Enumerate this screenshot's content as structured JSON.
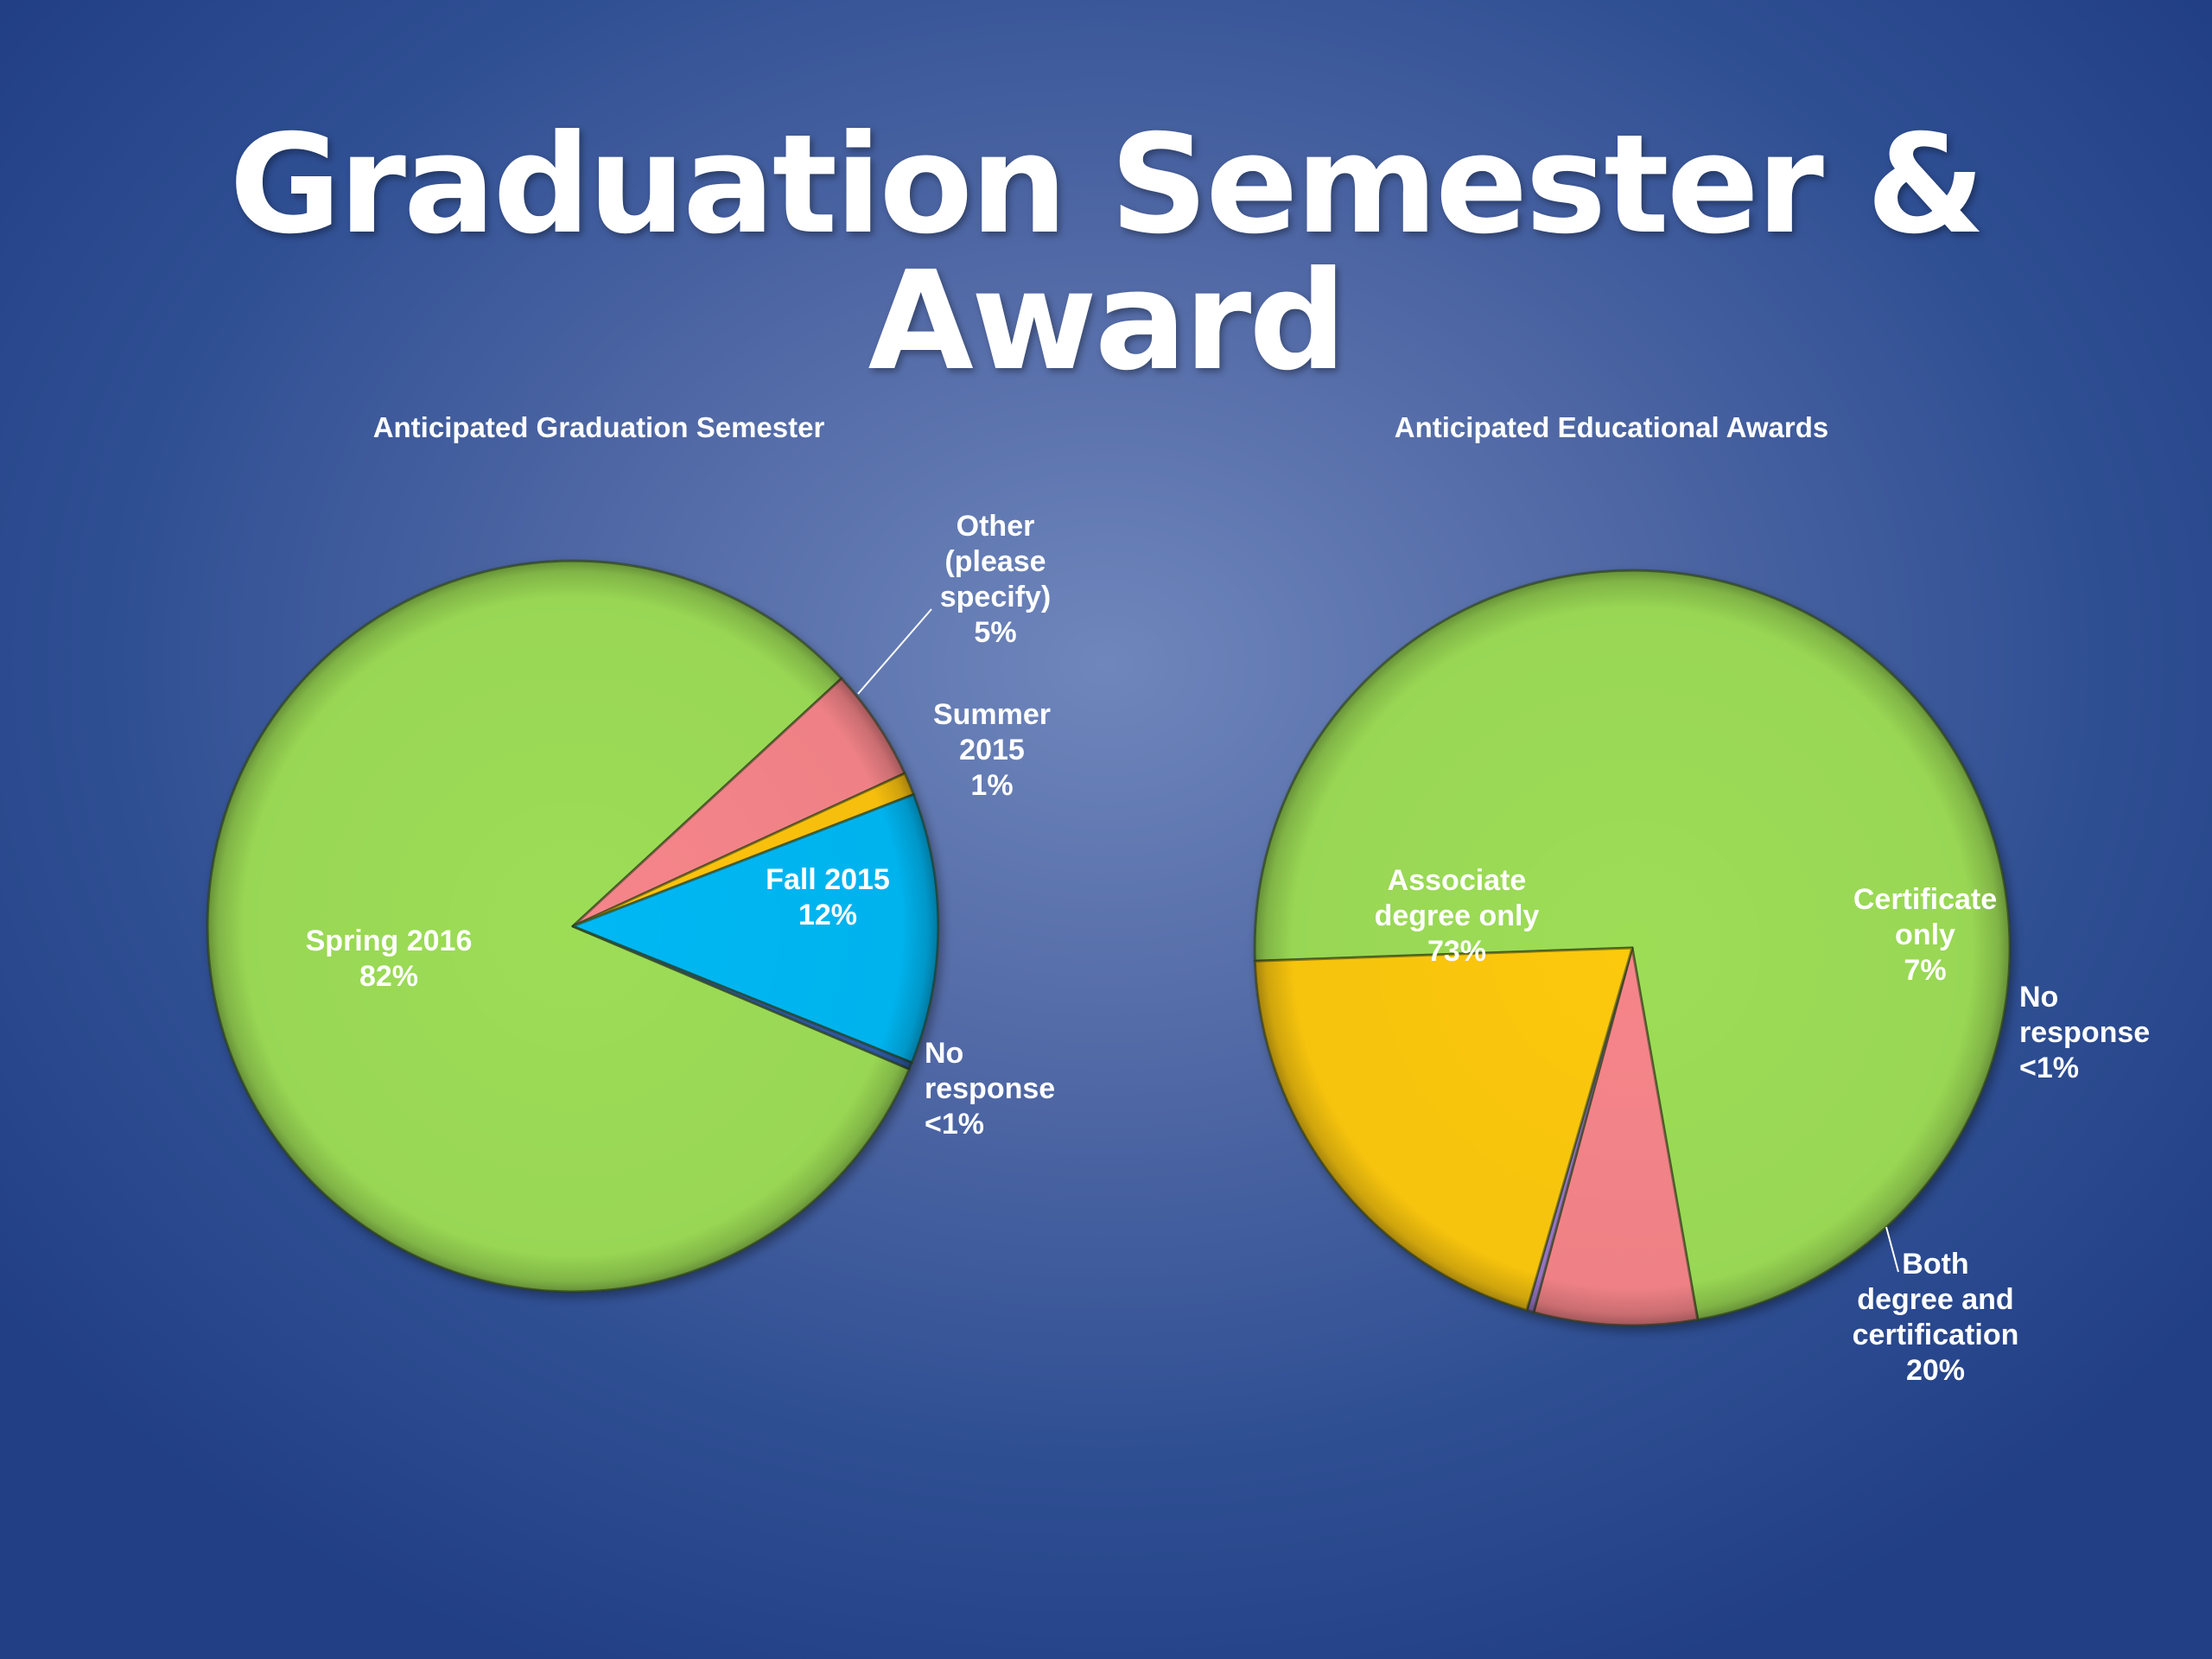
{
  "slide": {
    "title": "Graduation Semester & Award"
  },
  "chart_data": [
    {
      "type": "pie",
      "title": "Anticipated Graduation Semester",
      "slices": [
        {
          "name": "Spring 2016",
          "label_lines": [
            "Spring 2016"
          ],
          "value_label": "82%",
          "value": 82,
          "color": "#9ddd56"
        },
        {
          "name": "Other (please specify)",
          "label_lines": [
            "Other",
            "(please",
            "specify)"
          ],
          "value_label": "5%",
          "value": 5,
          "color": "#f6858a"
        },
        {
          "name": "Summer 2015",
          "label_lines": [
            "Summer",
            "2015"
          ],
          "value_label": "1%",
          "value": 1,
          "color": "#fdc40a"
        },
        {
          "name": "Fall 2015",
          "label_lines": [
            "Fall 2015"
          ],
          "value_label": "12%",
          "value": 12,
          "color": "#06b8f4"
        },
        {
          "name": "No response",
          "label_lines": [
            "No",
            "response"
          ],
          "value_label": "<1%",
          "value": 0.3,
          "color": "#2e5ba8"
        }
      ]
    },
    {
      "type": "pie",
      "title": "Anticipated Educational Awards",
      "slices": [
        {
          "name": "Associate degree only",
          "label_lines": [
            "Associate",
            "degree only"
          ],
          "value_label": "73%",
          "value": 73,
          "color": "#9ddd56"
        },
        {
          "name": "Certificate only",
          "label_lines": [
            "Certificate",
            "only"
          ],
          "value_label": "7%",
          "value": 7,
          "color": "#f6858a"
        },
        {
          "name": "No response",
          "label_lines": [
            "No",
            "response"
          ],
          "value_label": "<1%",
          "value": 0.3,
          "color": "#9a76c8"
        },
        {
          "name": "Both degree and certification",
          "label_lines": [
            "Both",
            "degree and",
            "certification"
          ],
          "value_label": "20%",
          "value": 20,
          "color": "#fdc90c"
        }
      ]
    }
  ]
}
